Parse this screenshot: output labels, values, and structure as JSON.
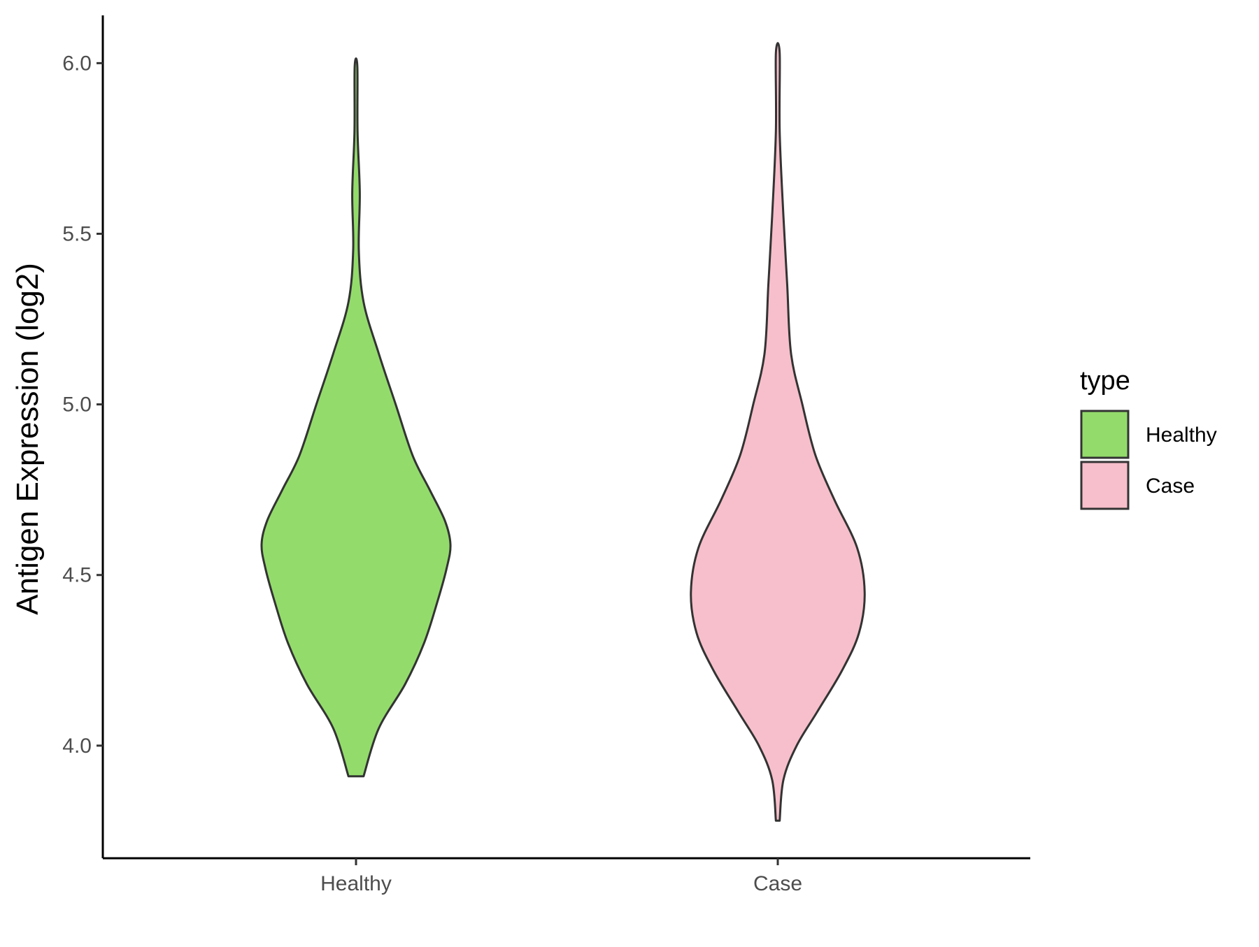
{
  "chart_data": {
    "type": "violin",
    "categories": [
      "Healthy",
      "Case"
    ],
    "ylabel": "Antigen Expression (log2)",
    "xlabel": "",
    "ylim": [
      3.67,
      6.14
    ],
    "yticks": [
      "4.0",
      "4.5",
      "5.0",
      "5.5",
      "6.0"
    ],
    "grid": false,
    "legend": {
      "title": "type",
      "position": "right",
      "entries": [
        "Healthy",
        "Case"
      ]
    },
    "series": [
      {
        "name": "Healthy",
        "color": "#93dc6b",
        "min": 3.91,
        "max": 5.99,
        "density_profile": [
          {
            "y": 3.91,
            "half_width": 0.04
          },
          {
            "y": 4.05,
            "half_width": 0.12
          },
          {
            "y": 4.18,
            "half_width": 0.26
          },
          {
            "y": 4.3,
            "half_width": 0.36
          },
          {
            "y": 4.42,
            "half_width": 0.43
          },
          {
            "y": 4.52,
            "half_width": 0.48
          },
          {
            "y": 4.59,
            "half_width": 0.5
          },
          {
            "y": 4.66,
            "half_width": 0.47
          },
          {
            "y": 4.75,
            "half_width": 0.39
          },
          {
            "y": 4.85,
            "half_width": 0.3
          },
          {
            "y": 5.0,
            "half_width": 0.21
          },
          {
            "y": 5.15,
            "half_width": 0.12
          },
          {
            "y": 5.3,
            "half_width": 0.04
          },
          {
            "y": 5.45,
            "half_width": 0.015
          },
          {
            "y": 5.62,
            "half_width": 0.02
          },
          {
            "y": 5.8,
            "half_width": 0.008
          },
          {
            "y": 5.99,
            "half_width": 0.007
          }
        ]
      },
      {
        "name": "Case",
        "color": "#f7bfcb",
        "min": 3.78,
        "max": 6.03,
        "density_profile": [
          {
            "y": 3.78,
            "half_width": 0.01
          },
          {
            "y": 3.9,
            "half_width": 0.03
          },
          {
            "y": 4.0,
            "half_width": 0.1
          },
          {
            "y": 4.1,
            "half_width": 0.21
          },
          {
            "y": 4.22,
            "half_width": 0.34
          },
          {
            "y": 4.33,
            "half_width": 0.43
          },
          {
            "y": 4.45,
            "half_width": 0.46
          },
          {
            "y": 4.58,
            "half_width": 0.42
          },
          {
            "y": 4.72,
            "half_width": 0.3
          },
          {
            "y": 4.85,
            "half_width": 0.2
          },
          {
            "y": 5.0,
            "half_width": 0.13
          },
          {
            "y": 5.15,
            "half_width": 0.07
          },
          {
            "y": 5.35,
            "half_width": 0.05
          },
          {
            "y": 5.55,
            "half_width": 0.03
          },
          {
            "y": 5.8,
            "half_width": 0.01
          },
          {
            "y": 6.03,
            "half_width": 0.01
          }
        ]
      }
    ]
  }
}
